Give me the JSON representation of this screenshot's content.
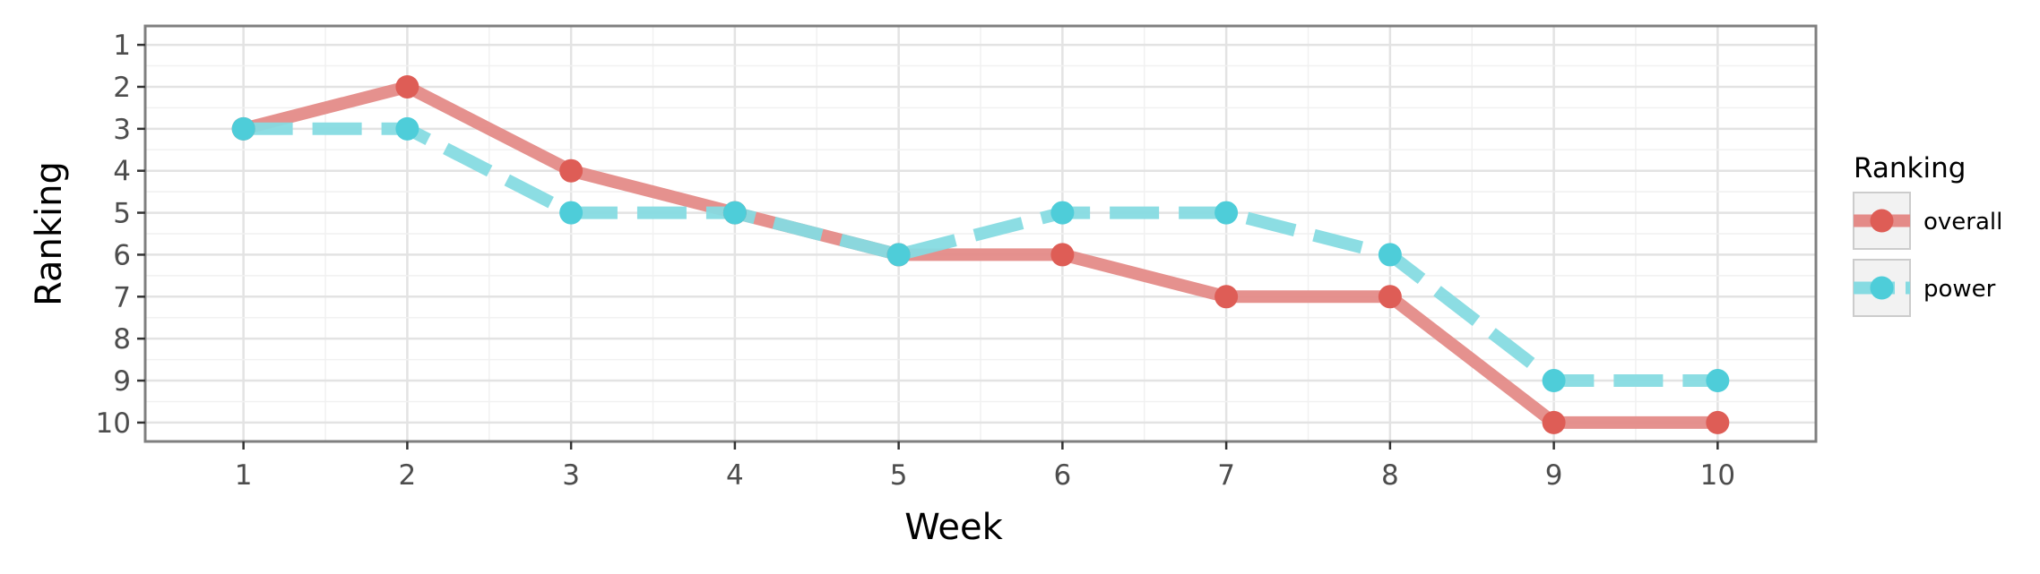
{
  "chart_data": {
    "type": "line",
    "title": "",
    "xlabel": "Week",
    "ylabel": "Ranking",
    "x": [
      1,
      2,
      3,
      4,
      5,
      6,
      7,
      8,
      9,
      10
    ],
    "x_tick_labels": [
      "1",
      "2",
      "3",
      "4",
      "5",
      "6",
      "7",
      "8",
      "9",
      "10"
    ],
    "y_tick_labels": [
      "1",
      "2",
      "3",
      "4",
      "5",
      "6",
      "7",
      "8",
      "9",
      "10"
    ],
    "xlim": [
      0.4,
      10.6
    ],
    "ylim": [
      10.45,
      0.55
    ],
    "y_reversed": true,
    "grid": true,
    "legend": {
      "title": "Ranking",
      "placement": "right"
    },
    "series": [
      {
        "name": "overall",
        "values": [
          3,
          2,
          4,
          5,
          6,
          6,
          7,
          7,
          10,
          10
        ],
        "line_color": "#E48B88",
        "point_color": "#DE5D56",
        "line_style": "solid"
      },
      {
        "name": "power",
        "values": [
          3,
          3,
          5,
          5,
          6,
          5,
          5,
          6,
          9,
          9
        ],
        "line_color": "#86DBE2",
        "point_color": "#4ECDD9",
        "line_style": "dashed"
      }
    ]
  }
}
